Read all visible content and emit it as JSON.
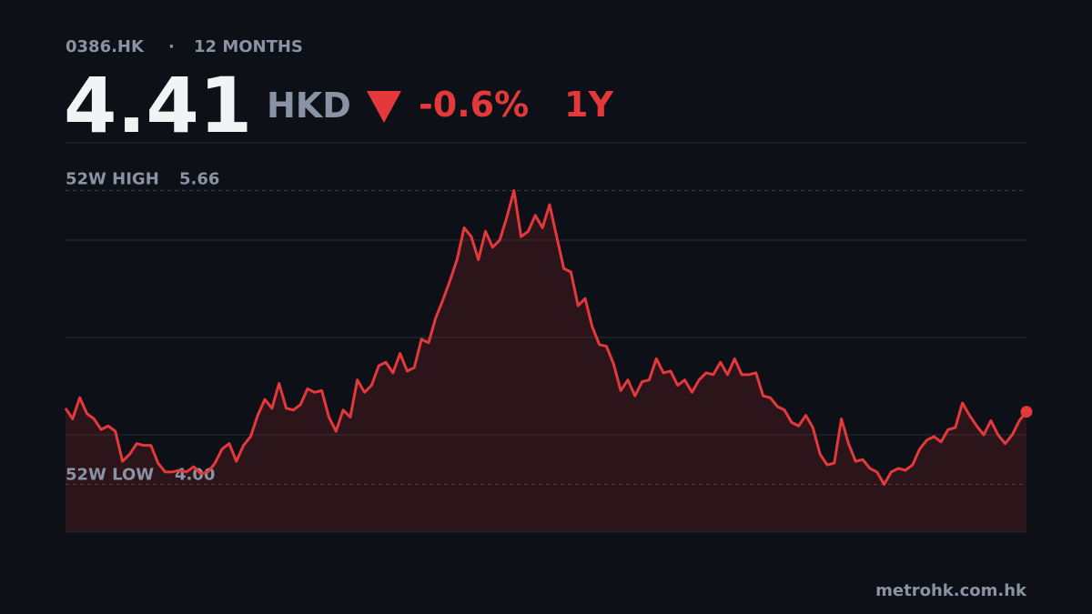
{
  "header": {
    "ticker": "0386.HK",
    "separator": "·",
    "period": "12 MONTHS",
    "price": 4.41,
    "currency": "HKD",
    "change": {
      "value": -0.6,
      "label": "-0.6%"
    },
    "range": "1Y"
  },
  "chart_data": {
    "type": "line",
    "color": "#e5383b",
    "values": [
      4.43,
      4.37,
      4.49,
      4.4,
      4.37,
      4.31,
      4.33,
      4.3,
      4.13,
      4.17,
      4.23,
      4.22,
      4.22,
      4.12,
      4.07,
      4.07,
      4.08,
      4.07,
      4.1,
      4.06,
      4.07,
      4.12,
      4.2,
      4.23,
      4.13,
      4.22,
      4.27,
      4.39,
      4.48,
      4.43,
      4.57,
      4.43,
      4.42,
      4.45,
      4.54,
      4.52,
      4.53,
      4.38,
      4.3,
      4.42,
      4.38,
      4.59,
      4.52,
      4.56,
      4.67,
      4.69,
      4.63,
      4.74,
      4.64,
      4.66,
      4.82,
      4.8,
      4.94,
      5.04,
      5.15,
      5.27,
      5.45,
      5.4,
      5.27,
      5.43,
      5.34,
      5.38,
      5.51,
      5.66,
      5.4,
      5.43,
      5.52,
      5.45,
      5.58,
      5.4,
      5.22,
      5.2,
      5.01,
      5.05,
      4.89,
      4.79,
      4.78,
      4.68,
      4.53,
      4.59,
      4.5,
      4.58,
      4.59,
      4.71,
      4.63,
      4.64,
      4.56,
      4.59,
      4.52,
      4.59,
      4.63,
      4.62,
      4.69,
      4.62,
      4.71,
      4.62,
      4.62,
      4.63,
      4.5,
      4.49,
      4.44,
      4.42,
      4.35,
      4.33,
      4.39,
      4.32,
      4.17,
      4.11,
      4.12,
      4.37,
      4.23,
      4.13,
      4.14,
      4.09,
      4.07,
      4.0,
      4.07,
      4.09,
      4.08,
      4.11,
      4.2,
      4.25,
      4.27,
      4.24,
      4.31,
      4.32,
      4.46,
      4.39,
      4.33,
      4.28,
      4.36,
      4.28,
      4.23,
      4.28,
      4.36,
      4.41
    ],
    "ylim": [
      3.73,
      5.93
    ],
    "grid_lines": [
      4.28,
      4.83,
      5.38,
      5.93
    ],
    "high": {
      "label": "52W HIGH",
      "value": 5.66
    },
    "low": {
      "label": "52W LOW",
      "value": 4,
      "value_label": "4.00"
    }
  },
  "footer": {
    "site": "metrohk.com.hk"
  }
}
